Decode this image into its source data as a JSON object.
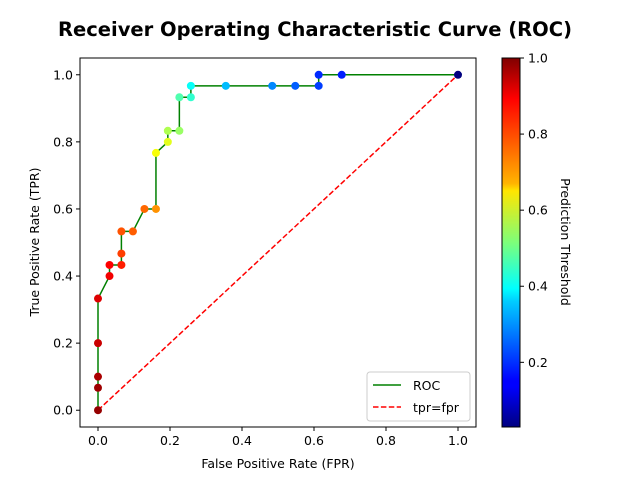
{
  "chart_data": {
    "type": "scatter",
    "title": "Receiver Operating Characteristic Curve (ROC)",
    "xlabel": "False Positive Rate (FPR)",
    "ylabel": "True Positive Rate (TPR)",
    "xlim": [
      -0.05,
      1.05
    ],
    "ylim": [
      -0.05,
      1.05
    ],
    "x_ticks": [
      "0.0",
      "0.2",
      "0.4",
      "0.6",
      "0.8",
      "1.0"
    ],
    "y_ticks": [
      "0.0",
      "0.2",
      "0.4",
      "0.6",
      "0.8",
      "1.0"
    ],
    "grid": false,
    "legend_position": "lower-right",
    "series": [
      {
        "name": "ROC",
        "style": "solid-line",
        "color": "#008000",
        "points": [
          {
            "x": 0.0,
            "y": 0.0,
            "threshold": 0.98
          },
          {
            "x": 0.0,
            "y": 0.067,
            "threshold": 0.97
          },
          {
            "x": 0.0,
            "y": 0.1,
            "threshold": 0.96
          },
          {
            "x": 0.0,
            "y": 0.2,
            "threshold": 0.93
          },
          {
            "x": 0.0,
            "y": 0.333,
            "threshold": 0.91
          },
          {
            "x": 0.032,
            "y": 0.4,
            "threshold": 0.89
          },
          {
            "x": 0.032,
            "y": 0.433,
            "threshold": 0.88
          },
          {
            "x": 0.065,
            "y": 0.433,
            "threshold": 0.85
          },
          {
            "x": 0.065,
            "y": 0.467,
            "threshold": 0.82
          },
          {
            "x": 0.065,
            "y": 0.533,
            "threshold": 0.8
          },
          {
            "x": 0.097,
            "y": 0.533,
            "threshold": 0.79
          },
          {
            "x": 0.129,
            "y": 0.6,
            "threshold": 0.78
          },
          {
            "x": 0.161,
            "y": 0.6,
            "threshold": 0.74
          },
          {
            "x": 0.161,
            "y": 0.767,
            "threshold": 0.63
          },
          {
            "x": 0.194,
            "y": 0.8,
            "threshold": 0.61
          },
          {
            "x": 0.194,
            "y": 0.833,
            "threshold": 0.56
          },
          {
            "x": 0.226,
            "y": 0.833,
            "threshold": 0.54
          },
          {
            "x": 0.226,
            "y": 0.933,
            "threshold": 0.47
          },
          {
            "x": 0.258,
            "y": 0.933,
            "threshold": 0.44
          },
          {
            "x": 0.258,
            "y": 0.967,
            "threshold": 0.4
          },
          {
            "x": 0.355,
            "y": 0.967,
            "threshold": 0.33
          },
          {
            "x": 0.484,
            "y": 0.967,
            "threshold": 0.28
          },
          {
            "x": 0.548,
            "y": 0.967,
            "threshold": 0.24
          },
          {
            "x": 0.613,
            "y": 0.967,
            "threshold": 0.21
          },
          {
            "x": 0.613,
            "y": 1.0,
            "threshold": 0.19
          },
          {
            "x": 0.677,
            "y": 1.0,
            "threshold": 0.18
          },
          {
            "x": 1.0,
            "y": 1.0,
            "threshold": 0.03
          }
        ]
      },
      {
        "name": "tpr=fpr",
        "style": "dashed-line",
        "color": "#ff0000",
        "points": [
          {
            "x": 0.0,
            "y": 0.0
          },
          {
            "x": 1.0,
            "y": 1.0
          }
        ]
      }
    ],
    "colorbar": {
      "label": "Prediction Threshold",
      "colormap": "jet",
      "range": [
        0.03,
        1.0
      ],
      "ticks": [
        "0.2",
        "0.4",
        "0.6",
        "0.8",
        "1.0"
      ]
    }
  }
}
